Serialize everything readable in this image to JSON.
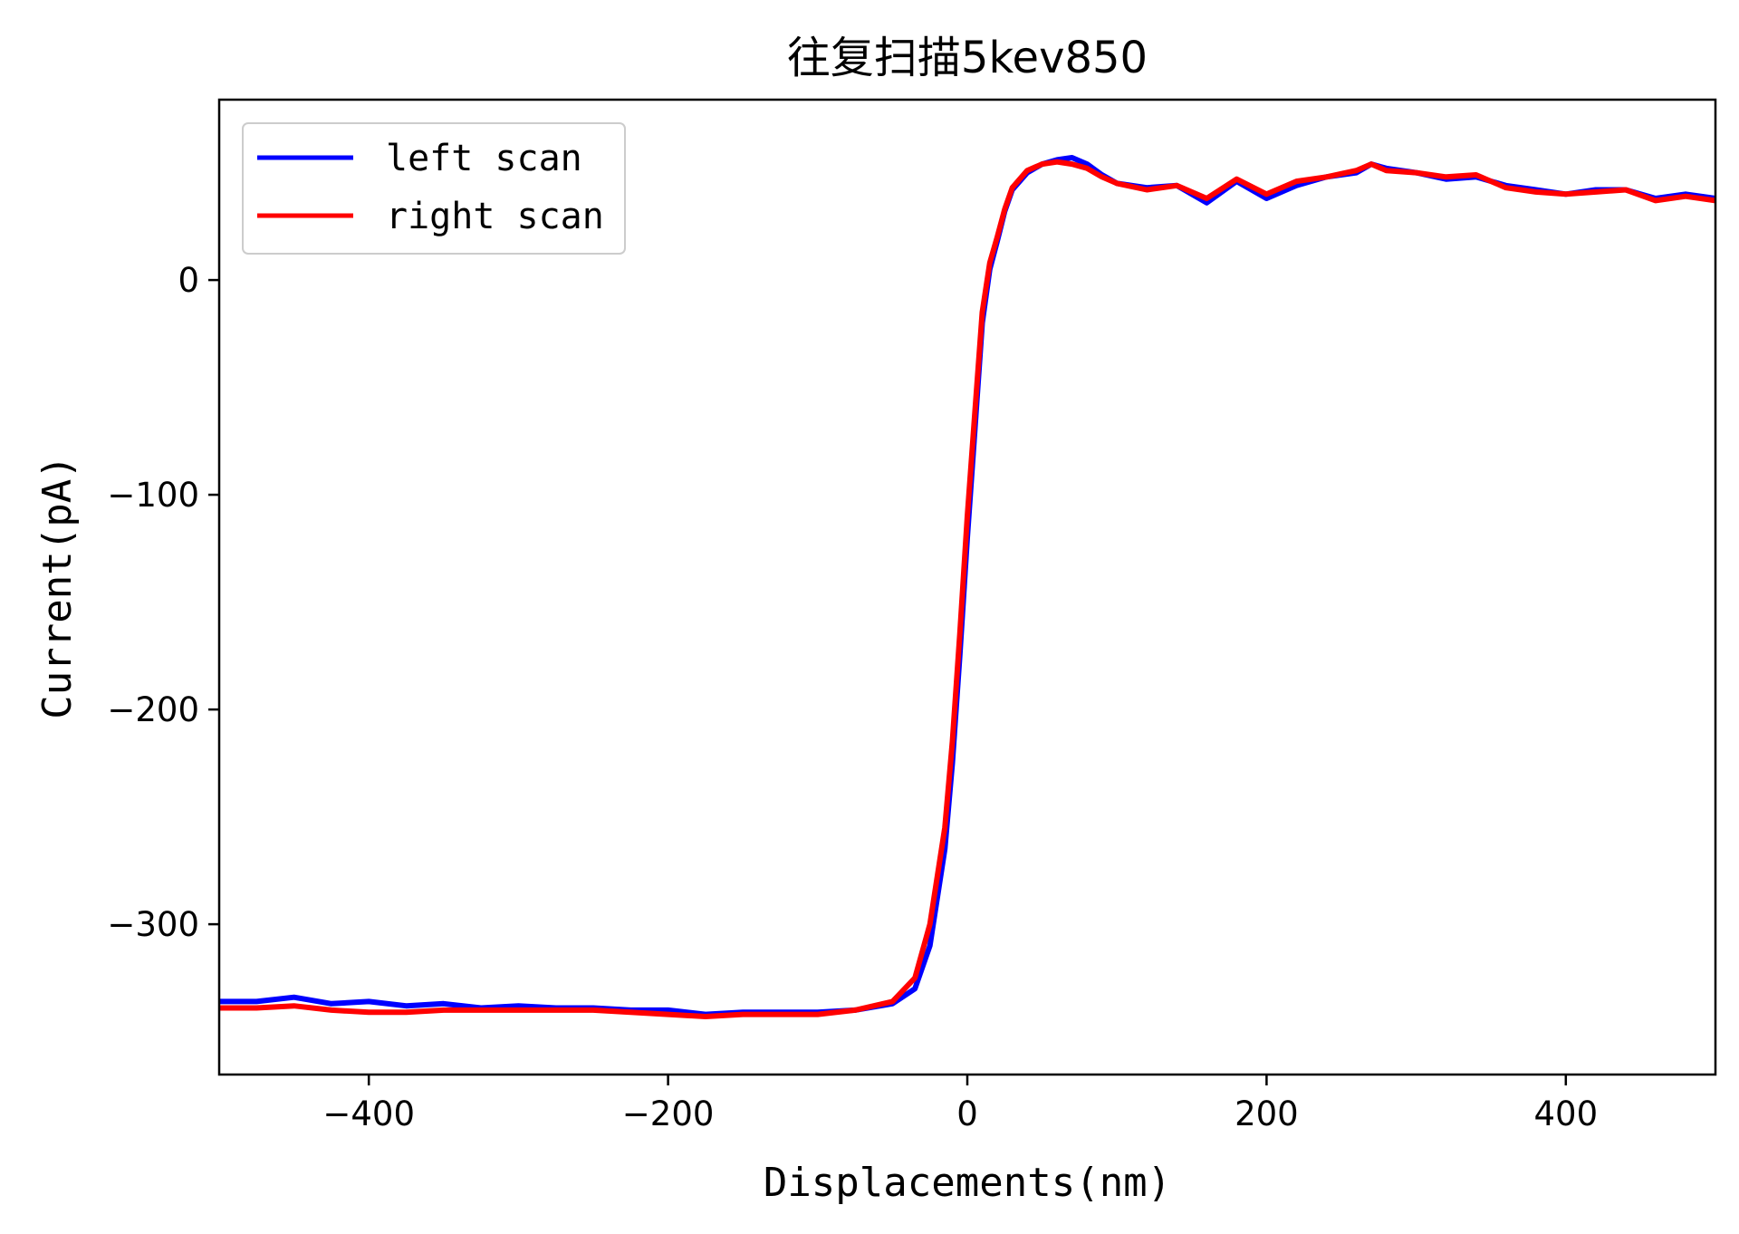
{
  "chart_data": {
    "type": "line",
    "title": "往复扫描5kev850",
    "xlabel": "Displacements(nm)",
    "ylabel": "Current(pA)",
    "xlim": [
      -500,
      500
    ],
    "ylim": [
      -370,
      84
    ],
    "xticks": [
      -400,
      -200,
      0,
      200,
      400
    ],
    "yticks": [
      0,
      -100,
      -200,
      -300
    ],
    "xtick_labels": [
      "−400",
      "−200",
      "0",
      "200",
      "400"
    ],
    "ytick_labels": [
      "0",
      "−100",
      "−200",
      "−300"
    ],
    "grid": false,
    "legend_position": "top-left",
    "series": [
      {
        "name": "left scan",
        "color": "#0000ff",
        "x": [
          -500,
          -475,
          -450,
          -425,
          -400,
          -375,
          -350,
          -325,
          -300,
          -275,
          -250,
          -225,
          -200,
          -175,
          -150,
          -125,
          -100,
          -75,
          -50,
          -35,
          -25,
          -15,
          -10,
          -5,
          0,
          5,
          10,
          15,
          20,
          25,
          30,
          40,
          50,
          60,
          70,
          80,
          90,
          100,
          120,
          140,
          160,
          180,
          200,
          220,
          240,
          260,
          270,
          280,
          300,
          320,
          340,
          360,
          380,
          400,
          420,
          440,
          460,
          480,
          500
        ],
        "y": [
          -336,
          -336,
          -334,
          -337,
          -336,
          -338,
          -337,
          -339,
          -338,
          -339,
          -339,
          -340,
          -340,
          -342,
          -341,
          -341,
          -341,
          -340,
          -337,
          -330,
          -310,
          -265,
          -225,
          -175,
          -120,
          -70,
          -20,
          5,
          18,
          32,
          42,
          50,
          54,
          56,
          57,
          54,
          49,
          45,
          43,
          44,
          36,
          46,
          38,
          44,
          48,
          50,
          54,
          52,
          50,
          47,
          48,
          44,
          42,
          40,
          42,
          42,
          38,
          40,
          38
        ]
      },
      {
        "name": "right scan",
        "color": "#ff0000",
        "x": [
          -500,
          -475,
          -450,
          -425,
          -400,
          -375,
          -350,
          -325,
          -300,
          -275,
          -250,
          -225,
          -200,
          -175,
          -150,
          -125,
          -100,
          -75,
          -50,
          -35,
          -25,
          -15,
          -10,
          -5,
          0,
          5,
          10,
          15,
          20,
          25,
          30,
          40,
          50,
          60,
          70,
          80,
          90,
          100,
          120,
          140,
          160,
          180,
          200,
          220,
          240,
          260,
          270,
          280,
          300,
          320,
          340,
          360,
          380,
          400,
          420,
          440,
          460,
          480,
          500
        ],
        "y": [
          -339,
          -339,
          -338,
          -340,
          -341,
          -341,
          -340,
          -340,
          -340,
          -340,
          -340,
          -341,
          -342,
          -343,
          -342,
          -342,
          -342,
          -340,
          -336,
          -325,
          -300,
          -255,
          -215,
          -165,
          -110,
          -62,
          -15,
          8,
          20,
          33,
          43,
          51,
          54,
          55,
          54,
          52,
          48,
          45,
          42,
          44,
          38,
          47,
          40,
          46,
          48,
          51,
          54,
          51,
          50,
          48,
          49,
          43,
          41,
          40,
          41,
          42,
          37,
          39,
          37
        ]
      }
    ]
  }
}
